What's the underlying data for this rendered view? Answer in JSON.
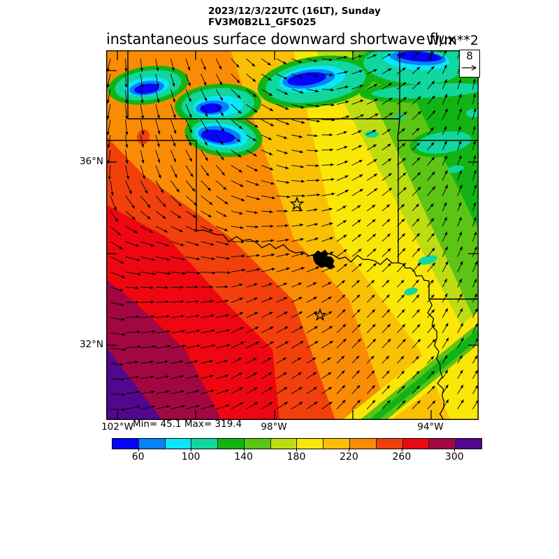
{
  "titles": {
    "datetime_line": "2023/12/3/22UTC (16LT), Sunday",
    "model_line": "FV3M0B2L1_GFS025",
    "main_title": "instantaneous surface downward shortwave flux",
    "units_label": "W/m**2"
  },
  "stats": {
    "min_max_label": "Min= 45.1 Max= 319.4"
  },
  "axes": {
    "lat_ticks": [
      {
        "label": "36°N"
      },
      {
        "label": "32°N"
      }
    ],
    "lon_ticks": [
      {
        "label": "102°W"
      },
      {
        "label": "98°W"
      },
      {
        "label": "94°W"
      }
    ]
  },
  "reference_arrow": {
    "value": "8"
  },
  "colorbar": {
    "labels": [
      "60",
      "100",
      "140",
      "180",
      "220",
      "260",
      "300"
    ],
    "colors": [
      "#0505fa",
      "#0782fa",
      "#0ae6fa",
      "#10d79e",
      "#12b414",
      "#5bc414",
      "#bedc12",
      "#fae607",
      "#fac005",
      "#fa8c05",
      "#f2400c",
      "#ee0710",
      "#a30742",
      "#53078d"
    ]
  },
  "chart_data": {
    "type": "heatmap",
    "title": "instantaneous surface downward shortwave flux",
    "units": "W/m**2",
    "valid_time": "2023/12/3/22UTC (16LT), Sunday",
    "model_run": "FV3M0B2L1_GFS025",
    "stat_min": 45.1,
    "stat_max": 319.4,
    "contour_levels": [
      40,
      60,
      80,
      100,
      120,
      140,
      160,
      180,
      200,
      220,
      240,
      260,
      280,
      300,
      320
    ],
    "level_colors": [
      "#0505fa",
      "#0782fa",
      "#0ae6fa",
      "#10d79e",
      "#12b414",
      "#5bc414",
      "#bedc12",
      "#fae607",
      "#fac005",
      "#fa8c05",
      "#f2400c",
      "#ee0710",
      "#a30742",
      "#53078d"
    ],
    "x_tick_labels": [
      "102°W",
      "98°W",
      "94°W"
    ],
    "y_tick_labels": [
      "36°N",
      "32°N"
    ],
    "map_region": "Southern Great Plains: Texas, Oklahoma, Kansas, Missouri, Arkansas, Louisiana",
    "wind_reference_value": 8,
    "field_description": "Downward shortwave flux forms diagonal NW-SE bands increasing toward the southwest: green ~120-140 in the northeast corner rising through yellow ~180-200 in central Oklahoma, orange ~220-240 and red ~260-280 in northwest Texas, to crimson/purple ~290-320 at the southwest corner. A cloud-shadow band of low flux (blue/cyan 40-100) stretches west-east across the north (Kansas/Oklahoma panhandle area), and a narrow green streak (~130-150) crosses the southeast corner.",
    "wind_pattern": "Quiver arrows: northerly (pointing south) over the west/northwest, veering to westerly-easterly flow in the center and south, and south-southwesterly (pointing north-northeast) along the eastern side; reference vector = 8.",
    "overlays": [
      "wind vector grid",
      "state boundaries",
      "Red River and Sabine River",
      "two open-star city markers",
      "black lake polygon (Lake Texoma area)"
    ]
  }
}
